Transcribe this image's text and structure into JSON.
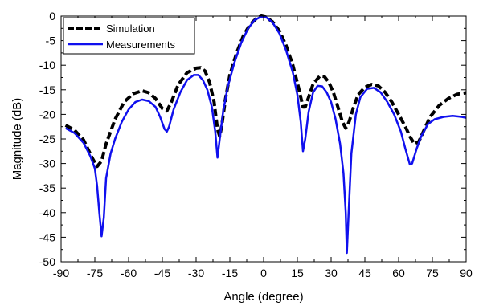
{
  "chart_data": {
    "type": "line",
    "title": "",
    "xlabel": "Angle (degree)",
    "ylabel": "Magnitude (dB)",
    "xlim": [
      -90,
      90
    ],
    "ylim": [
      -50,
      0
    ],
    "x_ticks": [
      -90,
      -75,
      -60,
      -45,
      -30,
      -15,
      0,
      15,
      30,
      45,
      60,
      75,
      90
    ],
    "y_ticks": [
      0,
      -5,
      -10,
      -15,
      -20,
      -25,
      -30,
      -35,
      -40,
      -45,
      -50
    ],
    "x_tick_labels": [
      "-90",
      "-75",
      "-60",
      "-45",
      "-30",
      "-15",
      "0",
      "15",
      "30",
      "45",
      "60",
      "75",
      "90"
    ],
    "y_tick_labels": [
      "0",
      "-5",
      "-10",
      "-15",
      "-20",
      "-25",
      "-30",
      "-35",
      "-40",
      "-45",
      "-50"
    ],
    "grid": false,
    "legend_position": "top-left",
    "series": [
      {
        "name": "Simulation",
        "color": "#000000",
        "style": "dashed",
        "points": [
          [
            -88,
            -22.2
          ],
          [
            -84,
            -23.2
          ],
          [
            -80,
            -25.2
          ],
          [
            -76,
            -29.0
          ],
          [
            -74,
            -30.6
          ],
          [
            -72,
            -29.5
          ],
          [
            -70,
            -26.0
          ],
          [
            -66,
            -21.0
          ],
          [
            -62,
            -17.5
          ],
          [
            -58,
            -15.8
          ],
          [
            -54,
            -15.2
          ],
          [
            -51,
            -15.6
          ],
          [
            -48,
            -16.8
          ],
          [
            -45,
            -18.8
          ],
          [
            -43,
            -19.3
          ],
          [
            -41,
            -17.5
          ],
          [
            -38,
            -14.0
          ],
          [
            -34,
            -11.5
          ],
          [
            -30,
            -10.6
          ],
          [
            -28,
            -10.5
          ],
          [
            -26,
            -11.2
          ],
          [
            -24,
            -13.5
          ],
          [
            -22,
            -17.5
          ],
          [
            -20.5,
            -23.0
          ],
          [
            -19.5,
            -24.5
          ],
          [
            -18.5,
            -22.0
          ],
          [
            -17,
            -17.0
          ],
          [
            -15,
            -12.0
          ],
          [
            -12,
            -7.5
          ],
          [
            -9,
            -4.0
          ],
          [
            -6,
            -1.7
          ],
          [
            -3,
            -0.4
          ],
          [
            -1,
            0
          ],
          [
            1,
            -0.2
          ],
          [
            4,
            -1.2
          ],
          [
            7,
            -3.0
          ],
          [
            10,
            -6.0
          ],
          [
            13,
            -10.0
          ],
          [
            15.5,
            -14.5
          ],
          [
            17.5,
            -18.5
          ],
          [
            18.5,
            -18.5
          ],
          [
            20,
            -16.5
          ],
          [
            22,
            -13.8
          ],
          [
            25,
            -12.2
          ],
          [
            27,
            -12.3
          ],
          [
            29,
            -13.5
          ],
          [
            31,
            -15.5
          ],
          [
            33,
            -18.5
          ],
          [
            35,
            -21.5
          ],
          [
            36.5,
            -22.8
          ],
          [
            38,
            -21.5
          ],
          [
            40,
            -18.5
          ],
          [
            42,
            -16.0
          ],
          [
            45,
            -14.5
          ],
          [
            48,
            -13.9
          ],
          [
            51,
            -14.2
          ],
          [
            54,
            -15.5
          ],
          [
            57,
            -17.5
          ],
          [
            60,
            -20.0
          ],
          [
            63,
            -22.5
          ],
          [
            65,
            -24.5
          ],
          [
            67,
            -26.0
          ],
          [
            69,
            -25.5
          ],
          [
            71,
            -23.5
          ],
          [
            74,
            -20.5
          ],
          [
            78,
            -18.2
          ],
          [
            82,
            -16.8
          ],
          [
            86,
            -15.9
          ],
          [
            90,
            -15.6
          ]
        ]
      },
      {
        "name": "Measurements",
        "color": "#1010ee",
        "style": "solid",
        "points": [
          [
            -88,
            -22.8
          ],
          [
            -84,
            -23.8
          ],
          [
            -80,
            -25.8
          ],
          [
            -77,
            -28.5
          ],
          [
            -75,
            -31.0
          ],
          [
            -74,
            -34.5
          ],
          [
            -73,
            -40.0
          ],
          [
            -72,
            -44.8
          ],
          [
            -71,
            -41.0
          ],
          [
            -70,
            -33.0
          ],
          [
            -68,
            -28.0
          ],
          [
            -66,
            -25.0
          ],
          [
            -63,
            -21.5
          ],
          [
            -60,
            -19.0
          ],
          [
            -57,
            -17.5
          ],
          [
            -54,
            -17.0
          ],
          [
            -51,
            -17.3
          ],
          [
            -48,
            -18.5
          ],
          [
            -46,
            -20.5
          ],
          [
            -44,
            -23.0
          ],
          [
            -43,
            -23.5
          ],
          [
            -42,
            -22.5
          ],
          [
            -40,
            -19.0
          ],
          [
            -37,
            -15.5
          ],
          [
            -34,
            -13.0
          ],
          [
            -31,
            -12.0
          ],
          [
            -29,
            -12.0
          ],
          [
            -27,
            -13.0
          ],
          [
            -25,
            -15.0
          ],
          [
            -23,
            -18.5
          ],
          [
            -21.5,
            -23.5
          ],
          [
            -20.5,
            -28.8
          ],
          [
            -19.5,
            -25.0
          ],
          [
            -18,
            -19.5
          ],
          [
            -16,
            -14.5
          ],
          [
            -13,
            -9.5
          ],
          [
            -10,
            -5.5
          ],
          [
            -7,
            -2.6
          ],
          [
            -4,
            -0.8
          ],
          [
            -1,
            -0.1
          ],
          [
            1,
            -0.2
          ],
          [
            4,
            -1.3
          ],
          [
            7,
            -3.5
          ],
          [
            10,
            -7.0
          ],
          [
            13,
            -11.5
          ],
          [
            15,
            -16.0
          ],
          [
            16.5,
            -21.5
          ],
          [
            17.5,
            -27.5
          ],
          [
            18.5,
            -25.0
          ],
          [
            20,
            -19.5
          ],
          [
            22,
            -15.5
          ],
          [
            24,
            -14.2
          ],
          [
            26,
            -14.3
          ],
          [
            28,
            -15.5
          ],
          [
            30,
            -17.5
          ],
          [
            32,
            -21.0
          ],
          [
            34,
            -26.0
          ],
          [
            35.5,
            -32.0
          ],
          [
            36.5,
            -40.0
          ],
          [
            37,
            -48.2
          ],
          [
            37.8,
            -40.0
          ],
          [
            39,
            -28.0
          ],
          [
            41,
            -20.0
          ],
          [
            43,
            -16.5
          ],
          [
            46,
            -14.8
          ],
          [
            49,
            -14.6
          ],
          [
            52,
            -15.5
          ],
          [
            55,
            -17.5
          ],
          [
            58,
            -20.0
          ],
          [
            61,
            -23.5
          ],
          [
            63,
            -27.0
          ],
          [
            65,
            -30.2
          ],
          [
            66,
            -30.0
          ],
          [
            68,
            -27.0
          ],
          [
            70,
            -24.5
          ],
          [
            73,
            -22.0
          ],
          [
            76,
            -21.0
          ],
          [
            80,
            -20.5
          ],
          [
            84,
            -20.3
          ],
          [
            88,
            -20.5
          ],
          [
            90,
            -20.7
          ]
        ]
      }
    ]
  }
}
